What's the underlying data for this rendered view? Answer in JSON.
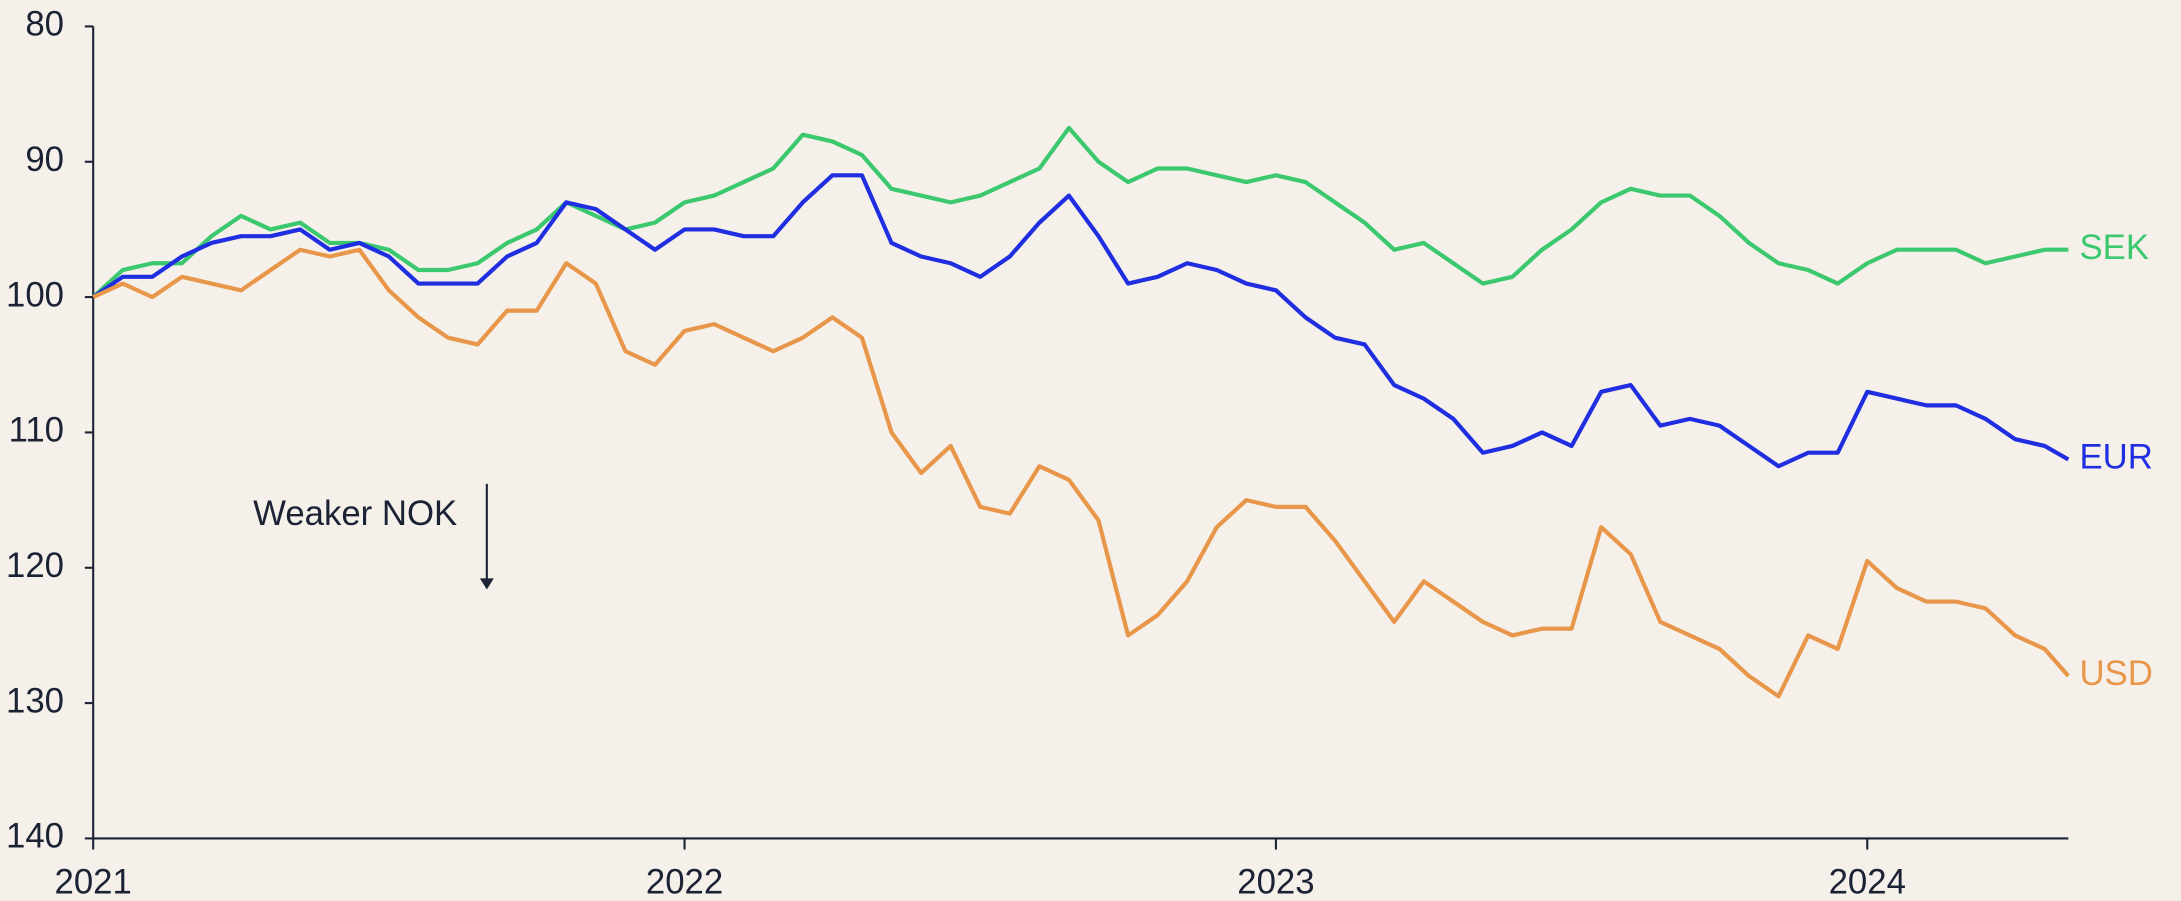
{
  "chart_data": {
    "type": "line",
    "annotation": "Weaker NOK",
    "x": [
      2021.0,
      2021.05,
      2021.1,
      2021.15,
      2021.2,
      2021.25,
      2021.3,
      2021.35,
      2021.4,
      2021.45,
      2021.5,
      2021.55,
      2021.6,
      2021.65,
      2021.7,
      2021.75,
      2021.8,
      2021.85,
      2021.9,
      2021.95,
      2022.0,
      2022.05,
      2022.1,
      2022.15,
      2022.2,
      2022.25,
      2022.3,
      2022.35,
      2022.4,
      2022.45,
      2022.5,
      2022.55,
      2022.6,
      2022.65,
      2022.7,
      2022.75,
      2022.8,
      2022.85,
      2022.9,
      2022.95,
      2023.0,
      2023.05,
      2023.1,
      2023.15,
      2023.2,
      2023.25,
      2023.3,
      2023.35,
      2023.4,
      2023.45,
      2023.5,
      2023.55,
      2023.6,
      2023.65,
      2023.7,
      2023.75,
      2023.8,
      2023.85,
      2023.9,
      2023.95,
      2024.0,
      2024.05,
      2024.1,
      2024.15,
      2024.2,
      2024.25,
      2024.3,
      2024.34
    ],
    "series": [
      {
        "name": "SEK",
        "color": "#3cc86e",
        "values": [
          100,
          98,
          97.5,
          97.5,
          95.5,
          94,
          95,
          94.5,
          96,
          96,
          96.5,
          98,
          98,
          97.5,
          96,
          95,
          93,
          94,
          95,
          94.5,
          93,
          92.5,
          91.5,
          90.5,
          88,
          88.5,
          89.5,
          92,
          92.5,
          93,
          92.5,
          91.5,
          90.5,
          87.5,
          90,
          91.5,
          90.5,
          90.5,
          91,
          91.5,
          91,
          91.5,
          93,
          94.5,
          96.5,
          96,
          97.5,
          99,
          98.5,
          96.5,
          95,
          93,
          92,
          92.5,
          92.5,
          94,
          96,
          97.5,
          98,
          99,
          97.5,
          96.5,
          96.5,
          96.5,
          97.5,
          97,
          96.5,
          96.5
        ]
      },
      {
        "name": "EUR",
        "color": "#1f2ee0",
        "values": [
          100,
          98.5,
          98.5,
          97,
          96,
          95.5,
          95.5,
          95,
          96.5,
          96,
          97,
          99,
          99,
          99,
          97,
          96,
          93,
          93.5,
          95,
          96.5,
          95,
          95,
          95.5,
          95.5,
          93,
          91,
          91,
          96,
          97,
          97.5,
          98.5,
          97,
          94.5,
          92.5,
          95.5,
          99,
          98.5,
          97.5,
          98,
          99,
          99.5,
          101.5,
          103,
          103.5,
          106.5,
          107.5,
          109,
          111.5,
          111,
          110,
          111,
          107,
          106.5,
          109.5,
          109,
          109.5,
          111,
          112.5,
          111.5,
          111.5,
          107,
          107.5,
          108,
          108,
          109,
          110.5,
          111,
          112
        ]
      },
      {
        "name": "USD",
        "color": "#e8964a",
        "values": [
          100,
          99,
          100,
          98.5,
          99,
          99.5,
          98,
          96.5,
          97,
          96.5,
          99.5,
          101.5,
          103,
          103.5,
          101,
          101,
          97.5,
          99,
          104,
          105,
          102.5,
          102,
          103,
          104,
          103,
          101.5,
          103,
          110,
          113,
          111,
          115.5,
          116,
          112.5,
          113.5,
          116.5,
          125,
          123.5,
          121,
          117,
          115,
          115.5,
          115.5,
          118,
          121,
          124,
          121,
          122.5,
          124,
          125,
          124.5,
          124.5,
          117,
          119,
          124,
          125,
          126,
          128,
          129.5,
          125,
          126,
          119.5,
          121.5,
          122.5,
          122.5,
          123,
          125,
          126,
          128
        ]
      }
    ],
    "xlim": [
      2021,
      2024.34
    ],
    "xticks": [
      2021,
      2022,
      2023,
      2024
    ],
    "ylim": [
      80,
      140
    ],
    "yticks": [
      80,
      90,
      100,
      110,
      120,
      130,
      140
    ],
    "y_inverted": true,
    "grid": false
  }
}
